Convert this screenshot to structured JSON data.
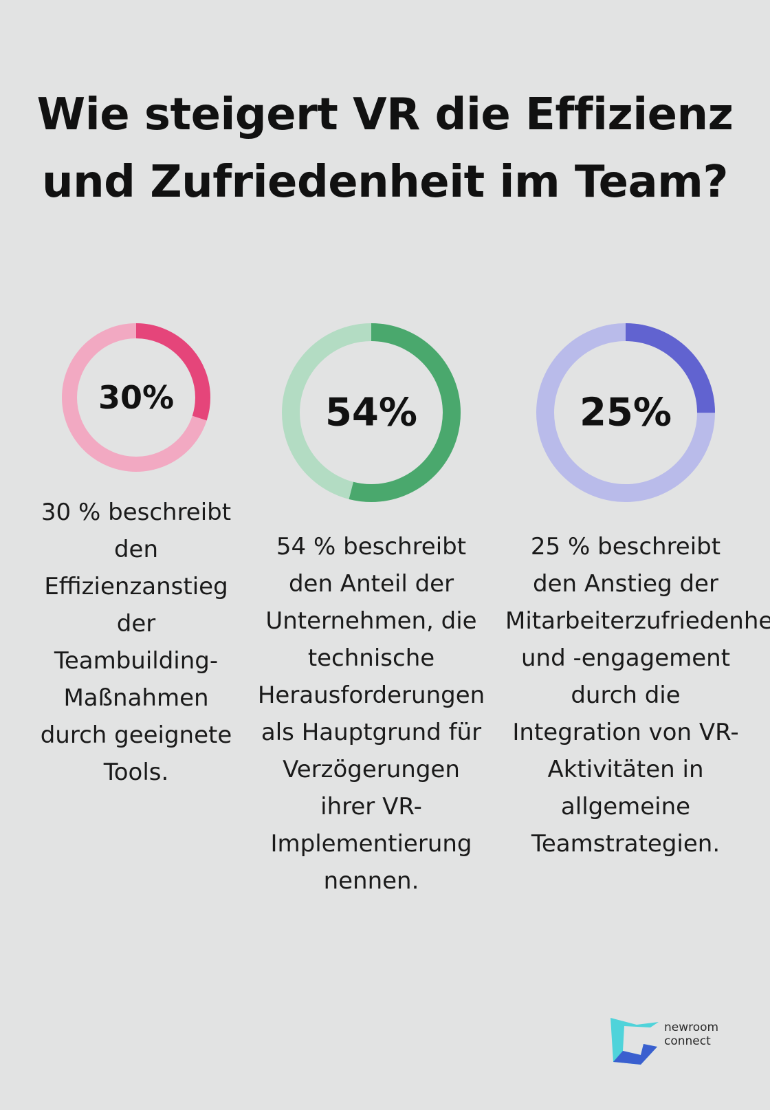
{
  "title": "Wie steigert VR die Effizienz und Zufriedenheit im Team?",
  "chart_data": [
    {
      "type": "pie",
      "value": 30,
      "label": "30%",
      "description": "30 % beschreibt den Effizienzanstieg der Teambuilding-Maßnahmen durch geeignete Tools.",
      "colors": {
        "fill": "#e5457a",
        "track": "#f2a9c2"
      }
    },
    {
      "type": "pie",
      "value": 54,
      "label": "54%",
      "description": "54 % beschreibt den Anteil der Unternehmen, die technische Herausforderungen als Hauptgrund für Verzögerungen ihrer VR-Implementierung nennen.",
      "colors": {
        "fill": "#4aa86d",
        "track": "#b3dcc3"
      }
    },
    {
      "type": "pie",
      "value": 25,
      "label": "25%",
      "description": "25 % beschreibt den Anstieg der Mitarbeiterzufriedenheit und -engagement durch die Integration von VR-Aktivitäten in allgemeine Teamstrategien.",
      "colors": {
        "fill": "#6163d0",
        "track": "#b9bbea"
      }
    }
  ],
  "logo": {
    "line1": "newroom",
    "line2": "connect",
    "colors": {
      "primary": "#3fd0d8",
      "secondary": "#3a5fcf"
    }
  }
}
